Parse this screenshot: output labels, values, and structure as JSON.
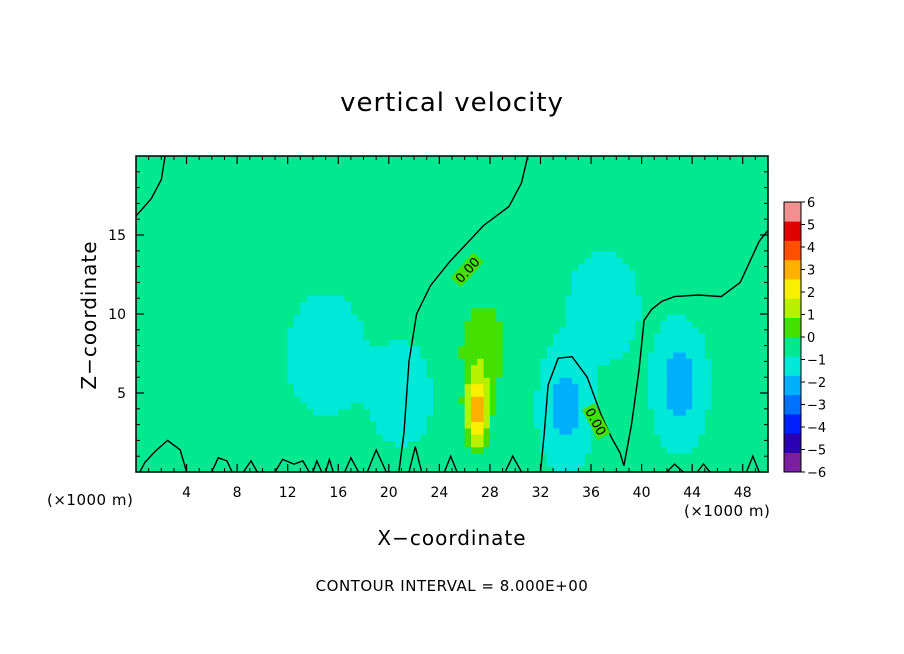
{
  "chart_data": {
    "type": "heatmap",
    "title": "vertical velocity",
    "xlabel": "X−coordinate",
    "ylabel": "Z−coordinate",
    "x_unit": "(×1000 m)",
    "xlim": [
      0,
      50
    ],
    "ylim": [
      0,
      20
    ],
    "x_ticks": [
      4,
      8,
      12,
      16,
      20,
      24,
      28,
      32,
      36,
      40,
      44,
      48
    ],
    "x_tick_labels": [
      "4",
      "8",
      "12",
      "16",
      "20",
      "24",
      "28",
      "32",
      "36",
      "40",
      "44",
      "48"
    ],
    "y_ticks": [
      5,
      10,
      15
    ],
    "y_tick_labels": [
      "5",
      "10",
      "15"
    ],
    "colorbar": {
      "levels": [
        -6,
        -5,
        -4,
        -3,
        -2,
        -1,
        0,
        1,
        2,
        3,
        4,
        5,
        6
      ],
      "labels": [
        "−6",
        "−5",
        "−4",
        "−3",
        "−2",
        "−1",
        "0",
        "1",
        "2",
        "3",
        "4",
        "5",
        "6"
      ],
      "colors": [
        "#7a1fa0",
        "#2a00b0",
        "#0020ff",
        "#0070ff",
        "#00b0ff",
        "#00e8d8",
        "#00e890",
        "#44e000",
        "#b8f000",
        "#f8f000",
        "#ffb000",
        "#ff5000",
        "#e00000",
        "#f09090"
      ]
    },
    "contour_label": "0.00",
    "contour_interval_text": "CONTOUR INTERVAL = 8.000E+00",
    "field_features": [
      {
        "kind": "updraft",
        "x": 27,
        "z": 3.8,
        "peak": 4.5
      },
      {
        "kind": "weak updraft",
        "x": 27.5,
        "z": 8,
        "peak": 1.5
      },
      {
        "kind": "downdraft",
        "x": 34,
        "z": 4.2,
        "peak": -1.8
      },
      {
        "kind": "downdraft",
        "x": 43,
        "z": 5.5,
        "peak": -2.0
      },
      {
        "kind": "weak downdraft",
        "x": 15,
        "z": 7.5,
        "peak": -0.8
      },
      {
        "kind": "weak downdraft",
        "x": 21,
        "z": 5,
        "peak": -0.5
      },
      {
        "kind": "weak downdraft",
        "x": 37,
        "z": 10.5,
        "peak": -0.6
      }
    ]
  }
}
